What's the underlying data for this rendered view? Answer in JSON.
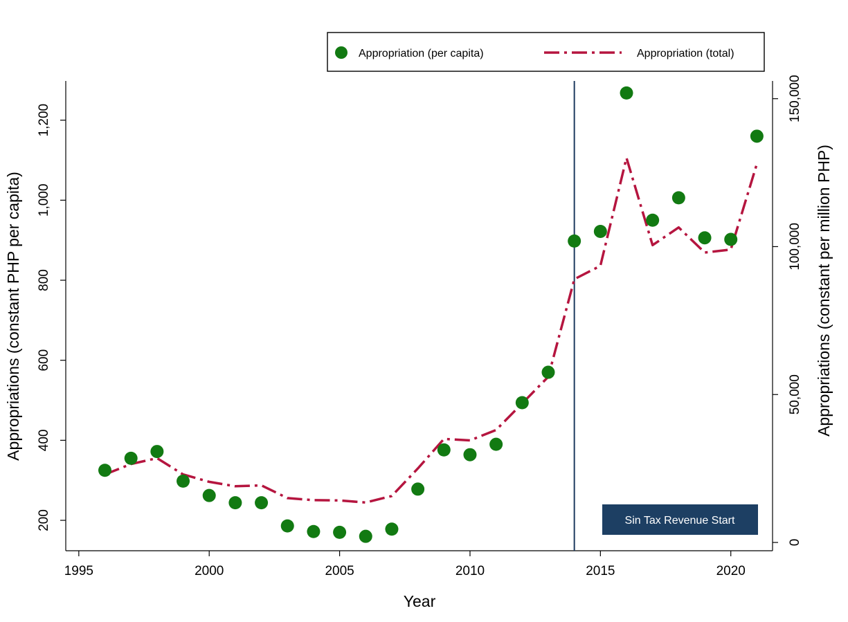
{
  "chart_data": {
    "type": "scatter+line",
    "xlabel": "Year",
    "ylabel_left": "Appropriations (constant PHP per capita)",
    "ylabel_right": "Appropriations (constant per million PHP)",
    "x_ticks": [
      1995,
      2000,
      2005,
      2010,
      2015,
      2020
    ],
    "x_tick_labels": [
      "1995",
      "2000",
      "2005",
      "2010",
      "2015",
      "2020"
    ],
    "y_left_ticks": [
      200,
      400,
      600,
      800,
      1000,
      1200
    ],
    "y_left_tick_labels": [
      "200",
      "400",
      "600",
      "800",
      "1,000",
      "1,200"
    ],
    "y_right_ticks": [
      0,
      50000,
      100000,
      150000
    ],
    "y_right_tick_labels": [
      "0",
      "50,000",
      "100,000",
      "150,000"
    ],
    "xlim": [
      1994.5,
      2021.6
    ],
    "ylim_left": [
      124,
      1298
    ],
    "ylim_right": [
      -2800,
      156000
    ],
    "legend_position": "top",
    "colors": {
      "per_capita": "#127a12",
      "total": "#b5153f",
      "vline": "#1d3a5f",
      "note_bg": "#1d3f63"
    },
    "series": [
      {
        "name": "Appropriation (per capita)",
        "kind": "scatter",
        "axis": "left",
        "x": [
          1996,
          1997,
          1998,
          1999,
          2000,
          2001,
          2002,
          2003,
          2004,
          2005,
          2006,
          2007,
          2008,
          2009,
          2010,
          2011,
          2012,
          2013,
          2014,
          2015,
          2016,
          2017,
          2018,
          2019,
          2020,
          2021
        ],
        "y": [
          325,
          355,
          372,
          298,
          262,
          244,
          244,
          186,
          172,
          170,
          160,
          178,
          278,
          376,
          364,
          390,
          494,
          570,
          898,
          922,
          1268,
          950,
          1006,
          906,
          902,
          1160
        ]
      },
      {
        "name": "Appropriation (total)",
        "kind": "line",
        "axis": "right",
        "x": [
          1996,
          1997,
          1998,
          1999,
          2000,
          2001,
          2002,
          2003,
          2004,
          2005,
          2006,
          2007,
          2008,
          2009,
          2010,
          2011,
          2012,
          2013,
          2014,
          2015,
          2016,
          2017,
          2018,
          2019,
          2020,
          2021
        ],
        "y": [
          23000,
          26500,
          28500,
          23000,
          20500,
          19000,
          19300,
          15000,
          14300,
          14200,
          13500,
          15700,
          25000,
          35000,
          34500,
          38000,
          47000,
          56000,
          89000,
          93500,
          130000,
          100500,
          106500,
          98000,
          99000,
          128000
        ]
      }
    ],
    "vline": {
      "x": 2014
    },
    "annotation": "Sin Tax Revenue Start"
  }
}
